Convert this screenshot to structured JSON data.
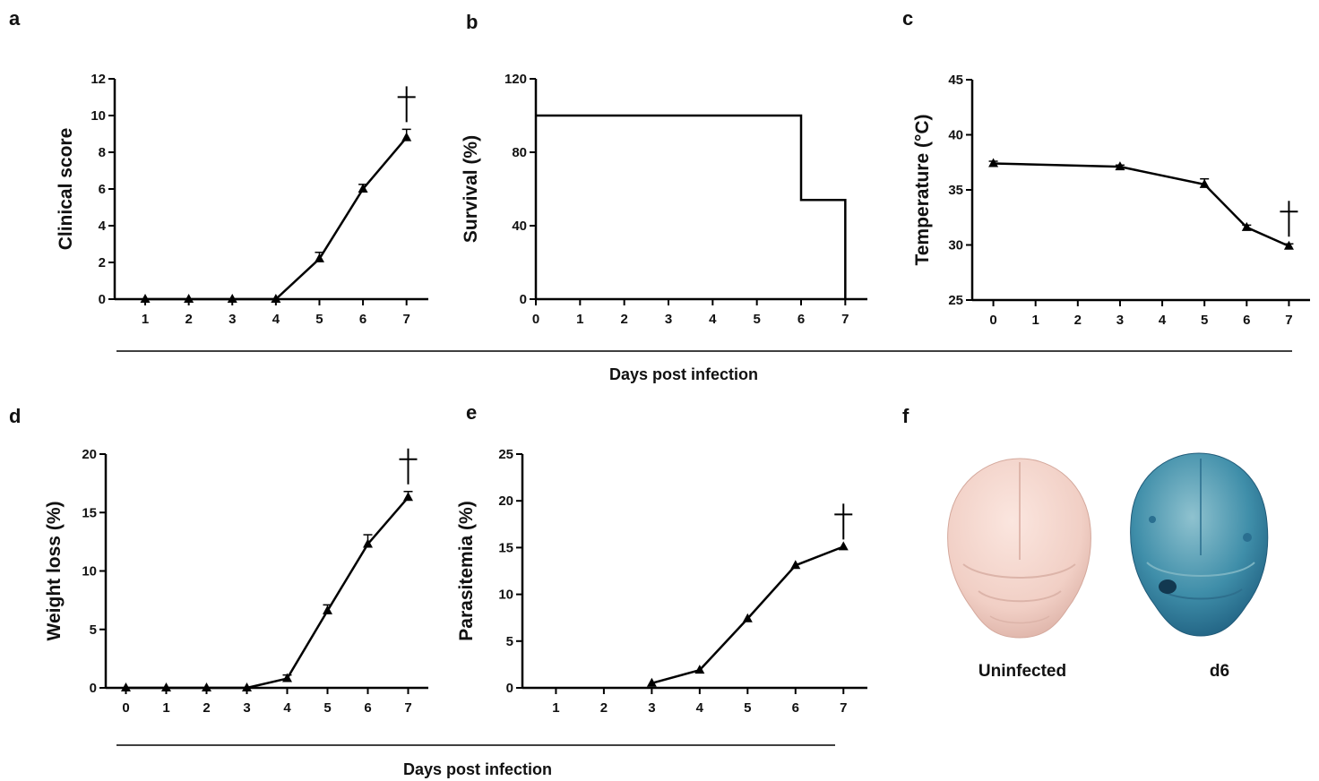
{
  "shared_labels": {
    "top_xlabel": "Days post infection",
    "bottom_xlabel": "Days post infection"
  },
  "chart_data": [
    {
      "panel": "a",
      "type": "line",
      "ylabel": "Clinical score",
      "xlabel": "",
      "x": [
        1,
        2,
        3,
        4,
        5,
        6,
        7
      ],
      "y": [
        0,
        0,
        0,
        0,
        2.2,
        6.0,
        8.8
      ],
      "error": [
        0,
        0,
        0,
        0,
        0.35,
        0.25,
        0.45
      ],
      "xlim": [
        0.3,
        7.5
      ],
      "ylim": [
        0,
        12
      ],
      "xticks": [
        1,
        2,
        3,
        4,
        5,
        6,
        7
      ],
      "yticks": [
        0,
        2,
        4,
        6,
        8,
        10,
        12
      ],
      "marker": "triangle",
      "dagger": "†",
      "dagger_x": 7
    },
    {
      "panel": "b",
      "type": "line",
      "ylabel": "Survival (%)",
      "xlabel": "",
      "step": true,
      "x": [
        0,
        6,
        6,
        7,
        7
      ],
      "y": [
        100,
        100,
        54,
        54,
        0
      ],
      "xlim": [
        0,
        7.5
      ],
      "ylim": [
        0,
        120
      ],
      "xticks": [
        0,
        1,
        2,
        3,
        4,
        5,
        6,
        7
      ],
      "yticks": [
        0,
        40,
        80,
        120
      ]
    },
    {
      "panel": "c",
      "type": "line",
      "ylabel": "Temperature (°C)",
      "xlabel": "",
      "x": [
        0,
        3,
        5,
        6,
        7
      ],
      "y": [
        37.4,
        37.1,
        35.5,
        31.6,
        29.9
      ],
      "error": [
        0.2,
        0.15,
        0.5,
        0.2,
        0.2
      ],
      "xlim": [
        -0.5,
        7.5
      ],
      "ylim": [
        25,
        45
      ],
      "xticks": [
        0,
        1,
        2,
        3,
        4,
        5,
        6,
        7
      ],
      "yticks": [
        25,
        30,
        35,
        40,
        45
      ],
      "marker": "triangle",
      "dagger": "†",
      "dagger_x": 7
    },
    {
      "panel": "d",
      "type": "line",
      "ylabel": "Weight loss  (%)",
      "xlabel": "",
      "x": [
        0,
        1,
        2,
        3,
        4,
        5,
        6,
        7
      ],
      "y": [
        0,
        0,
        0,
        0,
        0.8,
        6.6,
        12.3,
        16.3
      ],
      "error": [
        0,
        0,
        0,
        0,
        0.3,
        0.5,
        0.8,
        0.5
      ],
      "xlim": [
        -0.5,
        7.5
      ],
      "ylim": [
        0,
        20
      ],
      "xticks": [
        0,
        1,
        2,
        3,
        4,
        5,
        6,
        7
      ],
      "yticks": [
        0,
        5,
        10,
        15,
        20
      ],
      "marker": "triangle",
      "dagger": "†",
      "dagger_x": 7
    },
    {
      "panel": "e",
      "type": "line",
      "ylabel": "Parasitemia (%)",
      "xlabel": "",
      "x": [
        3,
        4,
        5,
        6,
        7
      ],
      "y": [
        0.5,
        1.9,
        7.4,
        13.1,
        15.1
      ],
      "error": [
        0,
        0,
        0,
        0,
        0
      ],
      "xlim": [
        0.3,
        7.5
      ],
      "ylim": [
        0,
        25
      ],
      "xticks": [
        1,
        2,
        3,
        4,
        5,
        6,
        7
      ],
      "yticks": [
        0,
        5,
        10,
        15,
        20,
        25
      ],
      "marker": "triangle",
      "dagger": "†",
      "dagger_x": 7
    }
  ],
  "panel_f": {
    "letter": "f",
    "labels": [
      "Uninfected",
      "d6"
    ],
    "colors": {
      "uninfected": "#f4d6cd",
      "infected": "#3a8ba8"
    }
  }
}
